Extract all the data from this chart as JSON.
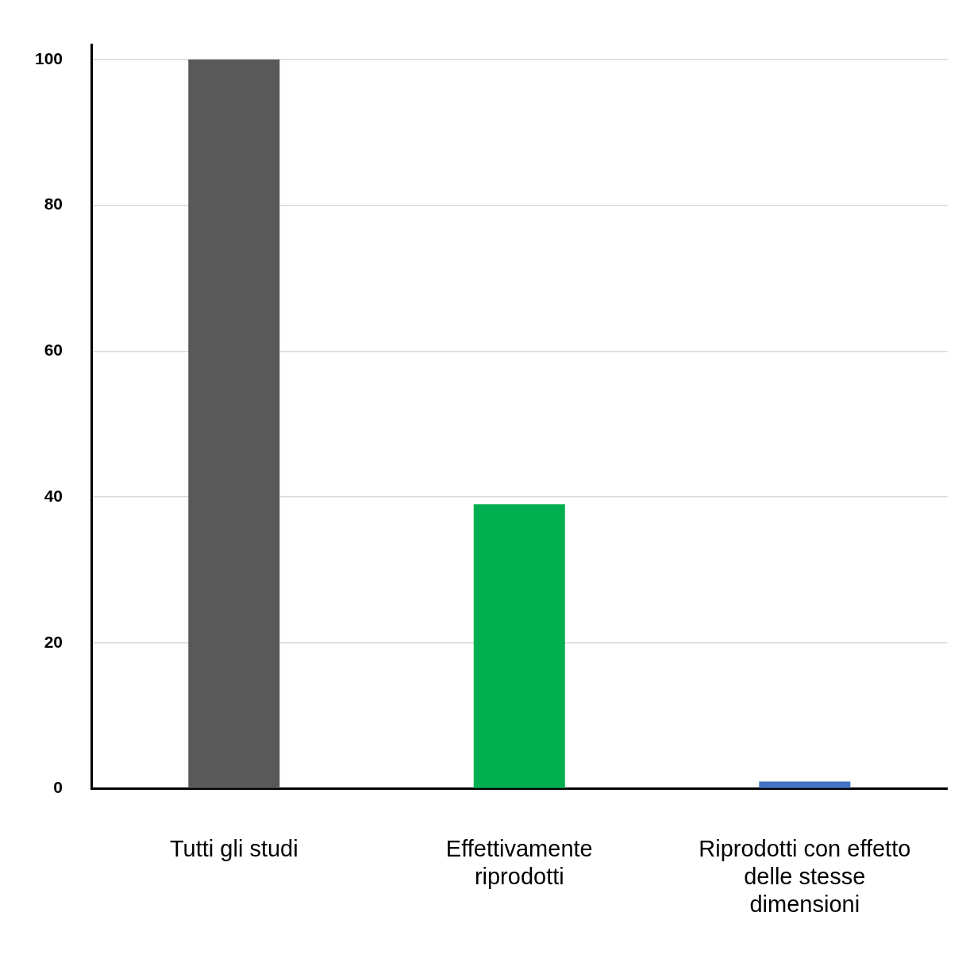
{
  "chart_data": {
    "type": "bar",
    "categories": [
      "Tutti gli studi",
      "Effettivamente riprodotti",
      "Riprodotti con effetto delle stesse dimensioni"
    ],
    "values": [
      100,
      39,
      1
    ],
    "colors": [
      "#595959",
      "#00b050",
      "#4472c4"
    ],
    "ylim": [
      0,
      102
    ],
    "yticks": [
      0,
      20,
      40,
      60,
      80,
      100
    ],
    "grid": "y"
  }
}
